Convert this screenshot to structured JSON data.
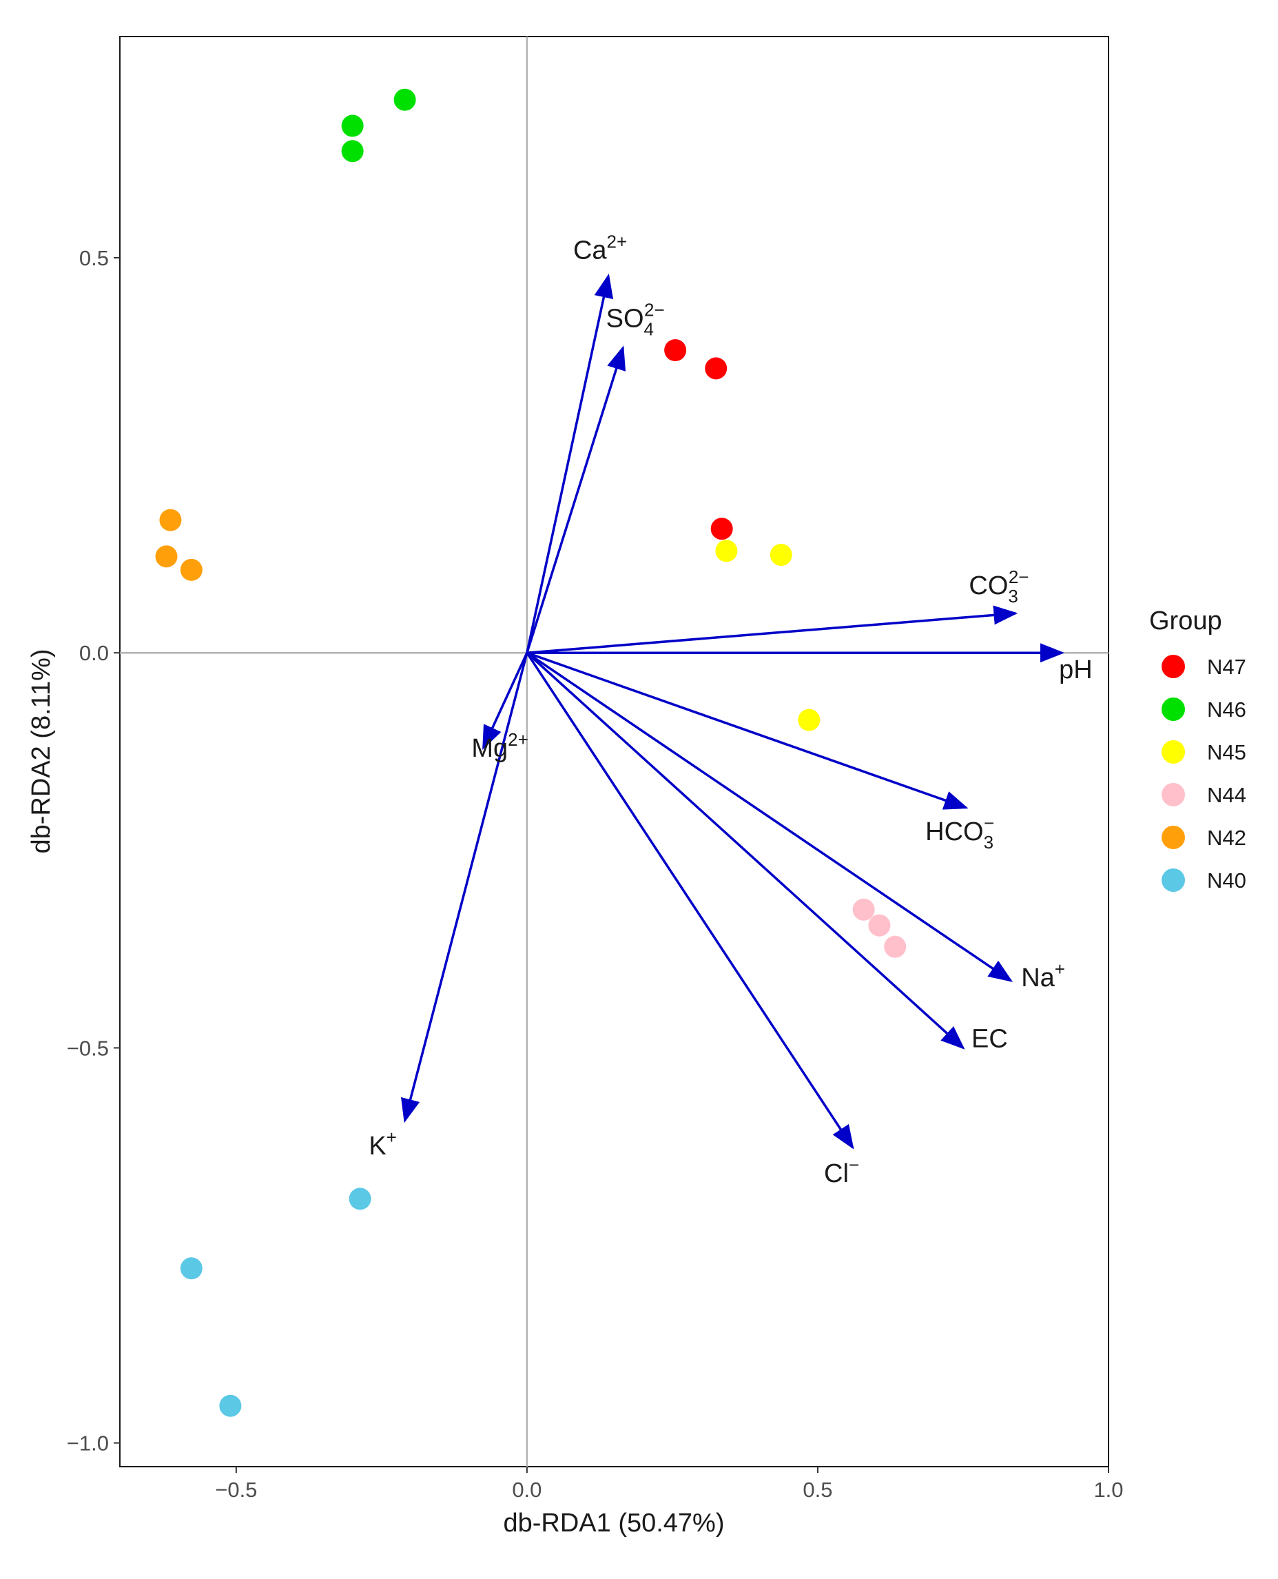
{
  "chart_data": {
    "type": "scatter",
    "subtype": "db-RDA biplot",
    "xlabel": "db-RDA1 (50.47%)",
    "ylabel": "db-RDA2 (8.11%)",
    "xlim": [
      -0.7,
      1.0
    ],
    "ylim": [
      -1.03,
      0.78
    ],
    "xticks": [
      -0.5,
      0.0,
      0.5,
      1.0
    ],
    "xtick_labels": [
      "−0.5",
      "0.0",
      "0.5",
      "1.0"
    ],
    "yticks": [
      -1.0,
      -0.5,
      0.0,
      0.5
    ],
    "ytick_labels": [
      "−1.0",
      "−0.5",
      "0.0",
      "0.5"
    ],
    "reference_lines": {
      "x": 0,
      "y": 0
    },
    "legend": {
      "title": "Group",
      "position": "right"
    },
    "series": [
      {
        "name": "N47",
        "color": "#ff0000",
        "points": [
          [
            0.255,
            0.383
          ],
          [
            0.325,
            0.36
          ],
          [
            0.335,
            0.157
          ]
        ]
      },
      {
        "name": "N46",
        "color": "#00e000",
        "points": [
          [
            -0.21,
            0.7
          ],
          [
            -0.3,
            0.667
          ],
          [
            -0.3,
            0.635
          ]
        ]
      },
      {
        "name": "N45",
        "color": "#ffff00",
        "points": [
          [
            0.343,
            0.129
          ],
          [
            0.437,
            0.124
          ],
          [
            0.485,
            -0.085
          ]
        ]
      },
      {
        "name": "N44",
        "color": "#ffc0cb",
        "points": [
          [
            0.579,
            -0.325
          ],
          [
            0.606,
            -0.345
          ],
          [
            0.633,
            -0.372
          ]
        ]
      },
      {
        "name": "N42",
        "color": "#ff9f0a",
        "points": [
          [
            -0.613,
            0.168
          ],
          [
            -0.62,
            0.122
          ],
          [
            -0.577,
            0.105
          ]
        ]
      },
      {
        "name": "N40",
        "color": "#5bc8e6",
        "points": [
          [
            -0.287,
            -0.691
          ],
          [
            -0.577,
            -0.779
          ],
          [
            -0.51,
            -0.953
          ]
        ]
      }
    ],
    "vectors": [
      {
        "id": "ca",
        "label": "Ca",
        "sup": "2+",
        "sub": "",
        "x": 0.14,
        "y": 0.477
      },
      {
        "id": "so4",
        "label": "SO",
        "sup": "2−",
        "sub": "4",
        "x": 0.165,
        "y": 0.386
      },
      {
        "id": "co3",
        "label": "CO",
        "sup": "2−",
        "sub": "3",
        "x": 0.84,
        "y": 0.05
      },
      {
        "id": "ph",
        "label": "pH",
        "sup": "",
        "sub": "",
        "x": 0.92,
        "y": 0.0
      },
      {
        "id": "mg",
        "label": "Mg",
        "sup": "2+",
        "sub": "",
        "x": -0.075,
        "y": -0.12
      },
      {
        "id": "hco3",
        "label": "HCO",
        "sup": "−",
        "sub": "3",
        "x": 0.755,
        "y": -0.196
      },
      {
        "id": "na",
        "label": "Na",
        "sup": "+",
        "sub": "",
        "x": 0.832,
        "y": -0.415
      },
      {
        "id": "ec",
        "label": "EC",
        "sup": "",
        "sub": "",
        "x": 0.75,
        "y": -0.5
      },
      {
        "id": "cl",
        "label": "Cl",
        "sup": "−",
        "sub": "",
        "x": 0.56,
        "y": -0.626
      },
      {
        "id": "k",
        "label": "K",
        "sup": "+",
        "sub": "",
        "x": -0.21,
        "y": -0.592
      }
    ],
    "vector_color": "#0000c8"
  }
}
